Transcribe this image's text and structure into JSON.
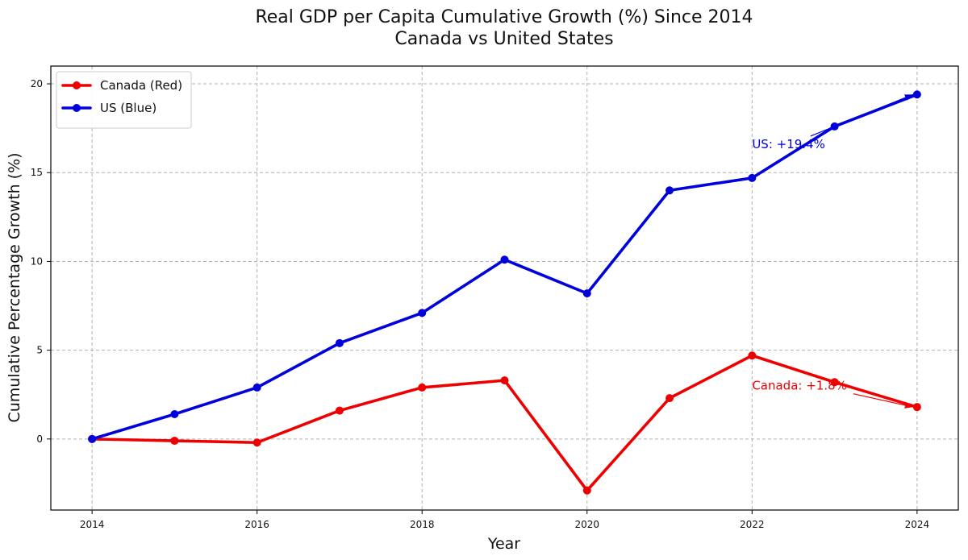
{
  "chart_data": {
    "type": "line",
    "title": "Real GDP per Capita Cumulative Growth (%) Since 2014",
    "subtitle": "Canada vs United States",
    "xlabel": "Year",
    "ylabel": "Cumulative Percentage Growth (%)",
    "x": [
      2014,
      2015,
      2016,
      2017,
      2018,
      2019,
      2020,
      2021,
      2022,
      2023,
      2024
    ],
    "xticks": [
      2014,
      2016,
      2018,
      2020,
      2022,
      2024
    ],
    "yticks": [
      0,
      5,
      10,
      15,
      20
    ],
    "xlim": [
      2013.5,
      2024.5
    ],
    "ylim": [
      -4.0,
      21.0
    ],
    "grid": true,
    "legend_position": "top-left",
    "series": [
      {
        "name": "Canada (Red)",
        "color": "#ee0000",
        "values": [
          0.0,
          -0.1,
          -0.2,
          1.6,
          2.9,
          3.3,
          -2.9,
          2.3,
          4.7,
          3.2,
          1.8
        ]
      },
      {
        "name": "US (Blue)",
        "color": "#0000dd",
        "values": [
          0.0,
          1.4,
          2.9,
          5.4,
          7.1,
          10.1,
          8.2,
          14.0,
          14.7,
          17.6,
          19.4
        ]
      }
    ],
    "annotations": [
      {
        "text": "US: +19.4%",
        "color": "#0000dd",
        "text_x": 2022,
        "text_y": 16.6,
        "point_x": 2024,
        "point_y": 19.4
      },
      {
        "text": "Canada: +1.8%",
        "color": "#ee0000",
        "text_x": 2022,
        "text_y": 3.0,
        "point_x": 2024,
        "point_y": 1.8
      }
    ]
  }
}
